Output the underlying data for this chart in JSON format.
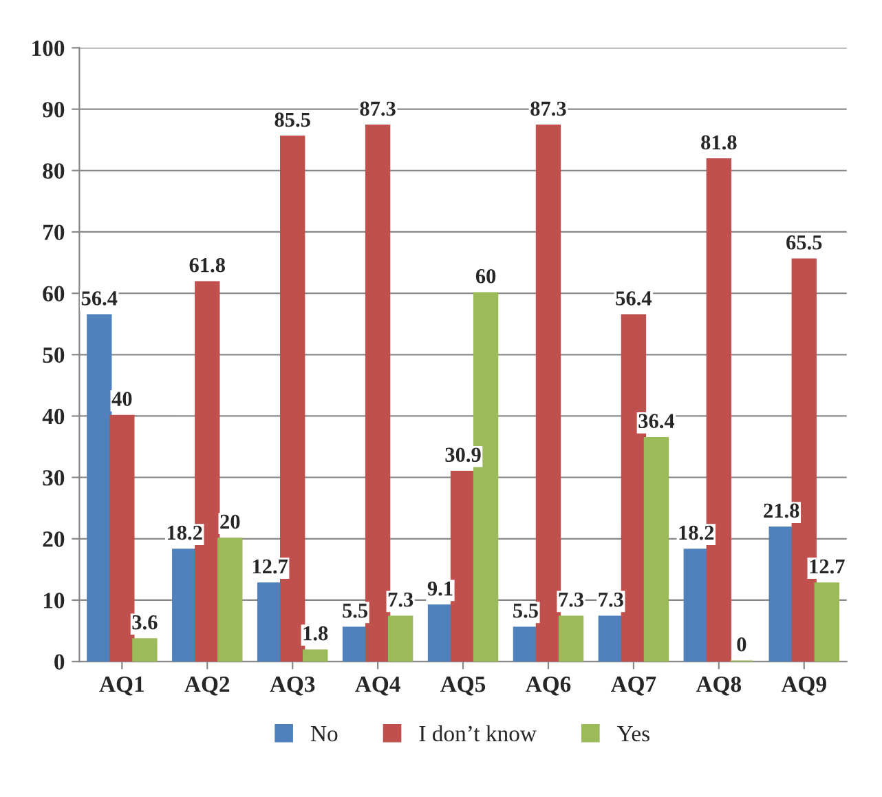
{
  "chart_data": {
    "type": "bar",
    "categories": [
      "AQ1",
      "AQ2",
      "AQ3",
      "AQ4",
      "AQ5",
      "AQ6",
      "AQ7",
      "AQ8",
      "AQ9"
    ],
    "series": [
      {
        "name": "No",
        "color": "#4f81bd",
        "values": [
          56.4,
          18.2,
          12.7,
          5.5,
          9.1,
          5.5,
          7.3,
          18.2,
          21.8
        ]
      },
      {
        "name": "I don’t know",
        "color": "#c0504d",
        "values": [
          40,
          61.8,
          85.5,
          87.3,
          30.9,
          87.3,
          56.4,
          81.8,
          65.5
        ]
      },
      {
        "name": "Yes",
        "color": "#9bbb59",
        "values": [
          3.6,
          20,
          1.8,
          7.3,
          60,
          7.3,
          36.4,
          0,
          12.7
        ]
      }
    ],
    "ylim": [
      0,
      100
    ],
    "yticks": [
      0,
      10,
      20,
      30,
      40,
      50,
      60,
      70,
      80,
      90,
      100
    ],
    "grid": "y",
    "legend": "bottom",
    "data_labels": true
  }
}
